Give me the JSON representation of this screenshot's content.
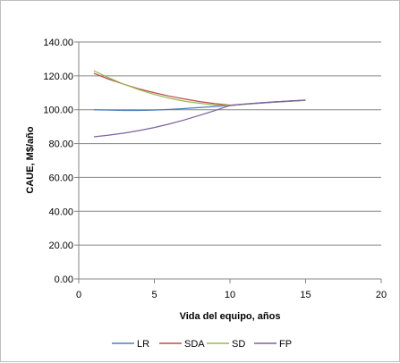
{
  "chart_data": {
    "type": "line",
    "title": "",
    "xlabel": "Vida del equipo, años",
    "ylabel": "CAUE, M$/año",
    "xlim": [
      0,
      20
    ],
    "ylim": [
      0,
      140
    ],
    "xticks": [
      0,
      5,
      10,
      15,
      20
    ],
    "xtick_labels": [
      "0",
      "5",
      "10",
      "15",
      "20"
    ],
    "yticks": [
      0,
      20,
      40,
      60,
      80,
      100,
      120,
      140
    ],
    "ytick_labels": [
      "0.00",
      "20.00",
      "40.00",
      "60.00",
      "80.00",
      "100.00",
      "120.00",
      "140.00"
    ],
    "grid": "horizontal",
    "legend_position": "bottom",
    "series": [
      {
        "name": "LR",
        "color": "#4a7ebb",
        "x": [
          1,
          2,
          3,
          4,
          5,
          6,
          7,
          8,
          9,
          10,
          11,
          12,
          13,
          14,
          15
        ],
        "y": [
          100.0,
          99.8,
          99.6,
          99.6,
          99.8,
          100.2,
          100.7,
          101.3,
          101.9,
          102.5,
          103.2,
          103.9,
          104.5,
          105.0,
          105.5
        ]
      },
      {
        "name": "SDA",
        "color": "#be4b48",
        "x": [
          1,
          2,
          3,
          4,
          5,
          6,
          7,
          8,
          9,
          10,
          11,
          12,
          13,
          14,
          15
        ],
        "y": [
          121.5,
          118.0,
          115.0,
          112.3,
          110.0,
          108.0,
          106.3,
          104.8,
          103.6,
          102.7,
          103.3,
          104.0,
          104.6,
          105.1,
          105.6
        ]
      },
      {
        "name": "SD",
        "color": "#98b954",
        "x": [
          1,
          2,
          3,
          4,
          5,
          6,
          7,
          8,
          9,
          10,
          11,
          12,
          13,
          14,
          15
        ],
        "y": [
          123.0,
          118.8,
          115.0,
          111.8,
          109.0,
          106.8,
          105.0,
          103.8,
          102.8,
          102.5,
          103.2,
          104.0,
          104.6,
          105.1,
          105.6
        ]
      },
      {
        "name": "FP",
        "color": "#7d60a0",
        "x": [
          1,
          2,
          3,
          4,
          5,
          6,
          7,
          8,
          9,
          10,
          11,
          12,
          13,
          14,
          15
        ],
        "y": [
          84.0,
          85.0,
          86.2,
          87.7,
          89.5,
          91.6,
          94.0,
          96.7,
          99.5,
          102.5,
          103.4,
          104.1,
          104.7,
          105.2,
          105.7
        ]
      }
    ]
  }
}
